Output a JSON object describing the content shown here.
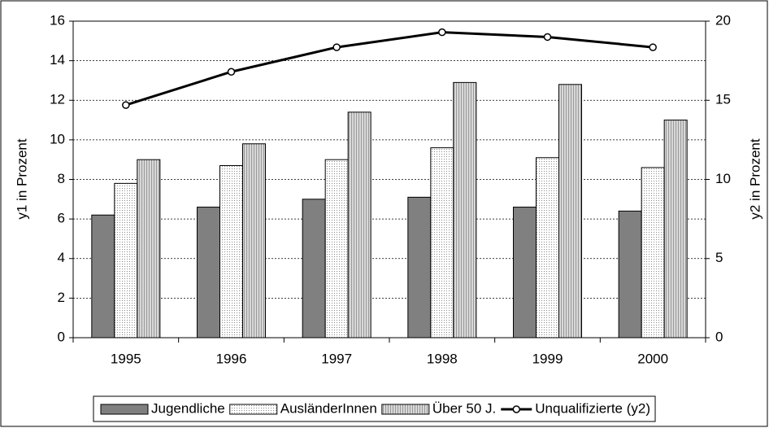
{
  "chart_data": {
    "type": "bar",
    "categories": [
      "1995",
      "1996",
      "1997",
      "1998",
      "1999",
      "2000"
    ],
    "series": [
      {
        "name": "Jugendliche",
        "color": "#808080",
        "values": [
          6.2,
          6.6,
          7.0,
          7.1,
          6.6,
          6.4
        ]
      },
      {
        "name": "AusländerInnen",
        "color": "#ffffff",
        "values": [
          7.8,
          8.7,
          9.0,
          9.6,
          9.1,
          8.6
        ]
      },
      {
        "name": "Über 50 J.",
        "color": "#c8c8c8",
        "values": [
          9.0,
          9.8,
          11.4,
          12.9,
          12.8,
          11.0
        ]
      },
      {
        "name": "Unqualifizierte (y2)",
        "type": "line",
        "axis": "y2",
        "color": "#000000",
        "values": [
          14.7,
          16.8,
          18.35,
          19.3,
          19.0,
          18.35
        ]
      }
    ],
    "ylabel": "y1 in Prozent",
    "y2label": "y2 in Prozent",
    "ylim": [
      0,
      16
    ],
    "yticks": [
      0,
      2,
      4,
      6,
      8,
      10,
      12,
      14,
      16
    ],
    "y2lim": [
      0,
      20
    ],
    "y2ticks": [
      0,
      5,
      10,
      15,
      20
    ],
    "grid": true,
    "legend": "bottom"
  }
}
